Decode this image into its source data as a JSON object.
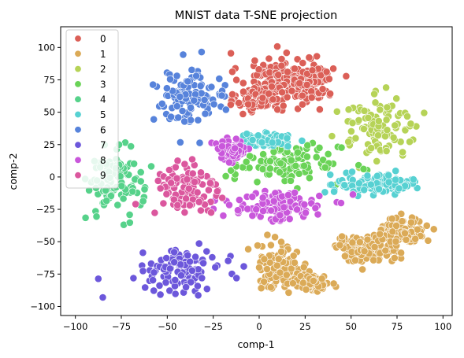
{
  "chart_data": {
    "type": "scatter",
    "title": "MNIST data T-SNE projection",
    "xlabel": "comp-1",
    "ylabel": "comp-2",
    "xlim": [
      -108,
      105
    ],
    "ylim": [
      -107,
      116
    ],
    "x_ticks": [
      -100,
      -75,
      -50,
      -25,
      0,
      25,
      50,
      75,
      100
    ],
    "y_ticks": [
      -100,
      -75,
      -50,
      -25,
      0,
      25,
      50,
      75,
      100
    ],
    "legend_position": "top-left",
    "point_edge_color": "#ffffff",
    "series": [
      {
        "name": "0",
        "color": "#db5f57",
        "clusters": [
          [
            10,
            78,
            21,
            18
          ],
          [
            28,
            72,
            12,
            15
          ],
          [
            0,
            60,
            12,
            10
          ]
        ]
      },
      {
        "name": "1",
        "color": "#dbaa57",
        "clusters": [
          [
            12,
            -70,
            14,
            18
          ],
          [
            30,
            -82,
            8,
            6
          ],
          [
            58,
            -55,
            18,
            10
          ],
          [
            78,
            -42,
            12,
            12
          ]
        ]
      },
      {
        "name": "2",
        "color": "#b6d357",
        "clusters": [
          [
            65,
            38,
            22,
            22
          ]
        ]
      },
      {
        "name": "3",
        "color": "#6ad357",
        "clusters": [
          [
            15,
            10,
            30,
            14
          ]
        ]
      },
      {
        "name": "4",
        "color": "#56d28a",
        "clusters": [
          [
            -78,
            -3,
            15,
            25
          ]
        ]
      },
      {
        "name": "5",
        "color": "#57d1d2",
        "clusters": [
          [
            63,
            -5,
            22,
            8
          ],
          [
            5,
            28,
            14,
            5
          ]
        ]
      },
      {
        "name": "6",
        "color": "#5783db",
        "clusters": [
          [
            -38,
            60,
            20,
            22
          ]
        ]
      },
      {
        "name": "7",
        "color": "#6c57db",
        "clusters": [
          [
            -42,
            -72,
            22,
            15
          ]
        ]
      },
      {
        "name": "8",
        "color": "#c957db",
        "clusters": [
          [
            10,
            -22,
            26,
            12
          ],
          [
            -15,
            20,
            8,
            8
          ]
        ]
      },
      {
        "name": "9",
        "color": "#db579e",
        "clusters": [
          [
            -40,
            -10,
            17,
            22
          ]
        ]
      }
    ]
  }
}
